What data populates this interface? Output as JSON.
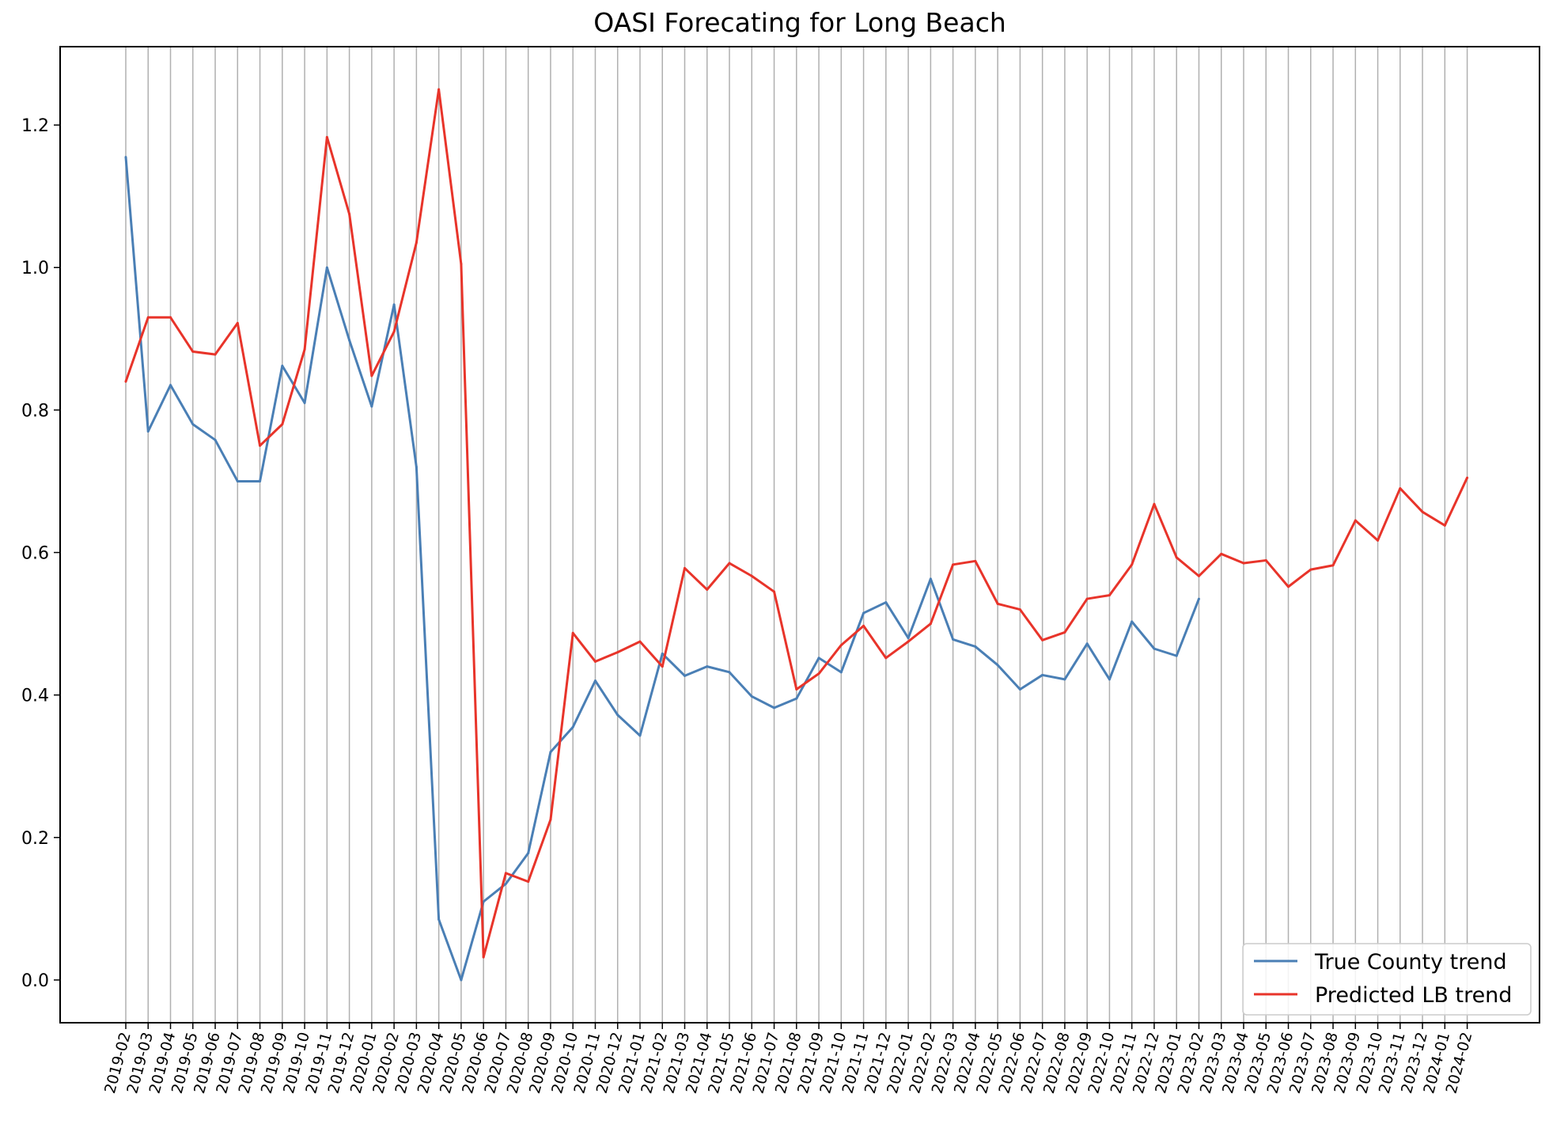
{
  "chart_data": {
    "type": "line",
    "title": "OASI Forecating for Long Beach",
    "xlabel": "",
    "ylabel": "",
    "ylim": [
      -0.06,
      1.31
    ],
    "y_ticks": [
      0.0,
      0.2,
      0.4,
      0.6,
      0.8,
      1.0,
      1.2
    ],
    "y_tick_labels": [
      "0.0",
      "0.2",
      "0.4",
      "0.6",
      "0.8",
      "1.0",
      "1.2"
    ],
    "grid": "vertical",
    "legend_position": "lower-right",
    "categories": [
      "2019-02",
      "2019-03",
      "2019-04",
      "2019-05",
      "2019-06",
      "2019-07",
      "2019-08",
      "2019-09",
      "2019-10",
      "2019-11",
      "2019-12",
      "2020-01",
      "2020-02",
      "2020-03",
      "2020-04",
      "2020-05",
      "2020-06",
      "2020-07",
      "2020-08",
      "2020-09",
      "2020-10",
      "2020-11",
      "2020-12",
      "2021-01",
      "2021-02",
      "2021-03",
      "2021-04",
      "2021-05",
      "2021-06",
      "2021-07",
      "2021-08",
      "2021-09",
      "2021-10",
      "2021-11",
      "2021-12",
      "2022-01",
      "2022-02",
      "2022-03",
      "2022-04",
      "2022-05",
      "2022-06",
      "2022-07",
      "2022-08",
      "2022-09",
      "2022-10",
      "2022-11",
      "2022-12",
      "2023-01",
      "2023-02",
      "2023-03",
      "2023-04",
      "2023-05",
      "2023-06",
      "2023-07",
      "2023-08",
      "2023-09",
      "2023-10",
      "2023-11",
      "2023-12",
      "2024-01",
      "2024-02"
    ],
    "series": [
      {
        "name": "True County trend",
        "color": "#4a7fb5",
        "values": [
          1.155,
          0.77,
          0.835,
          0.78,
          0.758,
          0.7,
          0.7,
          0.862,
          0.81,
          1.0,
          0.898,
          0.805,
          0.948,
          0.72,
          0.085,
          0.0,
          0.11,
          0.135,
          0.178,
          0.32,
          0.355,
          0.42,
          0.372,
          0.343,
          0.458,
          0.427,
          0.44,
          0.432,
          0.398,
          0.382,
          0.395,
          0.452,
          0.432,
          0.515,
          0.53,
          0.48,
          0.563,
          0.478,
          0.468,
          0.442,
          0.408,
          0.428,
          0.422,
          0.472,
          0.422,
          0.503,
          0.465,
          0.455,
          0.535,
          null,
          null,
          null,
          null,
          null,
          null,
          null,
          null,
          null,
          null,
          null,
          null
        ]
      },
      {
        "name": "Predicted LB trend",
        "color": "#e8342a",
        "values": [
          0.84,
          0.93,
          0.93,
          0.882,
          0.878,
          0.922,
          0.75,
          0.78,
          0.885,
          1.183,
          1.075,
          0.848,
          0.91,
          1.035,
          1.25,
          1.005,
          0.032,
          0.15,
          0.138,
          0.225,
          0.487,
          0.447,
          0.46,
          0.475,
          0.44,
          0.578,
          0.548,
          0.585,
          0.567,
          0.545,
          0.408,
          0.43,
          0.47,
          0.497,
          0.452,
          0.475,
          0.5,
          0.583,
          0.588,
          0.528,
          0.52,
          0.477,
          0.488,
          0.535,
          0.54,
          0.583,
          0.668,
          0.593,
          0.567,
          0.598,
          0.585,
          0.589,
          0.552,
          0.576,
          0.582,
          0.645,
          0.617,
          0.69,
          0.657,
          0.638,
          0.705
        ]
      }
    ]
  }
}
